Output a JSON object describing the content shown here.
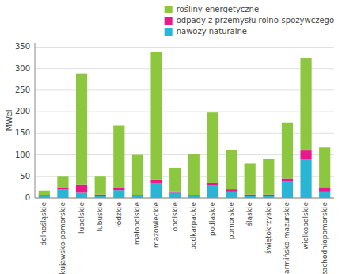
{
  "chart_data": {
    "type": "bar",
    "stacked": true,
    "y_label": "MWel",
    "categories": [
      "dolnośląskie",
      "kujawsko-pomorskie",
      "lubelskie",
      "lubuskie",
      "łódzkie",
      "małopolskie",
      "mazowieckie",
      "opolskie",
      "podkarpackie",
      "podlaskie",
      "pomorskie",
      "śląskie",
      "świętokrzyskie",
      "warmińsko-mazurskie",
      "wielkopolskie",
      "zachodniopomorskie"
    ],
    "series": [
      {
        "name": "nawozy naturalne",
        "color": "#29b6d4",
        "values": [
          5,
          20,
          12,
          5,
          18,
          5,
          35,
          12,
          5,
          30,
          15,
          5,
          5,
          40,
          90,
          15
        ]
      },
      {
        "name": "odpady z przemysłu rolno-spożywczego",
        "color": "#e9188c",
        "values": [
          2,
          3,
          20,
          3,
          5,
          2,
          8,
          3,
          2,
          5,
          5,
          3,
          3,
          5,
          20,
          10
        ]
      },
      {
        "name": "rośliny energetyczne",
        "color": "#8dc63f",
        "values": [
          10,
          28,
          257,
          43,
          145,
          93,
          295,
          55,
          94,
          163,
          92,
          72,
          82,
          130,
          215,
          92
        ]
      }
    ],
    "ylim": [
      0,
      360
    ],
    "yticks": [
      0,
      50,
      100,
      150,
      200,
      250,
      300,
      350
    ],
    "grid": true,
    "legend": "upper right"
  }
}
